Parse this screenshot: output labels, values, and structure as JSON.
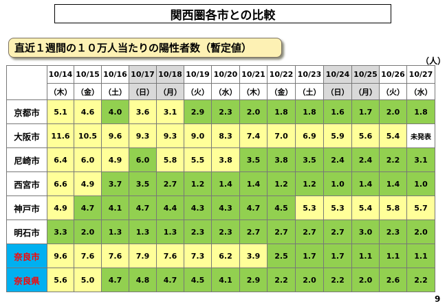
{
  "title": "関西圏各市との比較",
  "subtitle": "直近１週間の１０万人当たりの陽性者数（暫定値）",
  "unit": "（人）",
  "page_number": "9",
  "colors": {
    "green": "#92d050",
    "yellow": "#ffff99",
    "weekend_header": "#d9d9d9",
    "nara_bg": "#00b0f0",
    "nara_text": "#ff0000"
  },
  "dates": [
    "10/14",
    "10/15",
    "10/16",
    "10/17",
    "10/18",
    "10/19",
    "10/20",
    "10/21",
    "10/22",
    "10/23",
    "10/24",
    "10/25",
    "10/26",
    "10/27"
  ],
  "weekdays": [
    "（木）",
    "（金）",
    "（土）",
    "（日）",
    "（月）",
    "（火）",
    "（水）",
    "（木）",
    "（金）",
    "（土）",
    "（日）",
    "（月）",
    "（火）",
    "（水）"
  ],
  "weekend_columns": [
    3,
    4,
    10,
    11
  ],
  "rows": [
    {
      "city": "京都市",
      "values": [
        "5.1",
        "4.6",
        "4.0",
        "3.6",
        "3.1",
        "2.9",
        "2.3",
        "2.0",
        "1.8",
        "1.8",
        "1.6",
        "1.7",
        "2.0",
        "1.8"
      ],
      "colors": [
        "y",
        "y",
        "g",
        "y",
        "y",
        "g",
        "g",
        "g",
        "g",
        "g",
        "g",
        "g",
        "g",
        "g"
      ]
    },
    {
      "city": "大阪市",
      "values": [
        "11.6",
        "10.5",
        "9.6",
        "9.3",
        "9.3",
        "9.0",
        "8.3",
        "7.4",
        "7.0",
        "6.9",
        "5.9",
        "5.6",
        "5.4",
        "未発表"
      ],
      "colors": [
        "y",
        "y",
        "y",
        "y",
        "y",
        "y",
        "y",
        "y",
        "y",
        "y",
        "y",
        "y",
        "y",
        "w"
      ]
    },
    {
      "city": "尼崎市",
      "values": [
        "6.4",
        "6.0",
        "4.9",
        "6.0",
        "5.8",
        "5.5",
        "3.8",
        "3.5",
        "3.8",
        "3.5",
        "2.4",
        "2.4",
        "2.2",
        "3.1"
      ],
      "colors": [
        "y",
        "y",
        "y",
        "g",
        "y",
        "y",
        "y",
        "g",
        "g",
        "g",
        "g",
        "g",
        "g",
        "g"
      ]
    },
    {
      "city": "西宮市",
      "values": [
        "6.6",
        "4.9",
        "3.7",
        "3.5",
        "2.7",
        "1.2",
        "1.4",
        "1.4",
        "1.2",
        "1.2",
        "1.0",
        "1.4",
        "1.4",
        "1.0"
      ],
      "colors": [
        "y",
        "y",
        "g",
        "g",
        "g",
        "g",
        "g",
        "g",
        "g",
        "g",
        "g",
        "g",
        "g",
        "g"
      ]
    },
    {
      "city": "神戸市",
      "values": [
        "4.9",
        "4.7",
        "4.1",
        "4.7",
        "4.4",
        "4.3",
        "4.3",
        "4.7",
        "4.5",
        "5.3",
        "5.3",
        "5.4",
        "5.8",
        "5.7"
      ],
      "colors": [
        "y",
        "g",
        "g",
        "g",
        "g",
        "g",
        "g",
        "g",
        "g",
        "y",
        "y",
        "y",
        "y",
        "y"
      ]
    },
    {
      "city": "明石市",
      "values": [
        "3.3",
        "2.0",
        "1.3",
        "1.3",
        "1.3",
        "2.3",
        "2.3",
        "2.7",
        "2.7",
        "2.7",
        "2.7",
        "3.0",
        "2.3",
        "2.0"
      ],
      "colors": [
        "g",
        "g",
        "g",
        "g",
        "g",
        "g",
        "g",
        "g",
        "g",
        "g",
        "g",
        "g",
        "g",
        "g"
      ]
    },
    {
      "city": "奈良市",
      "nara": true,
      "values": [
        "9.6",
        "7.6",
        "7.6",
        "7.9",
        "7.6",
        "7.3",
        "6.2",
        "3.9",
        "2.5",
        "1.7",
        "1.7",
        "1.1",
        "1.1",
        "1.1"
      ],
      "colors": [
        "y",
        "y",
        "y",
        "y",
        "y",
        "y",
        "y",
        "y",
        "g",
        "g",
        "g",
        "g",
        "g",
        "g"
      ]
    },
    {
      "city": "奈良県",
      "nara": true,
      "values": [
        "5.6",
        "5.0",
        "4.7",
        "4.8",
        "4.7",
        "4.5",
        "4.1",
        "2.9",
        "2.2",
        "2.0",
        "2.2",
        "2.0",
        "2.6",
        "2.2"
      ],
      "colors": [
        "y",
        "y",
        "g",
        "g",
        "g",
        "g",
        "g",
        "g",
        "g",
        "g",
        "g",
        "g",
        "g",
        "g"
      ]
    }
  ]
}
